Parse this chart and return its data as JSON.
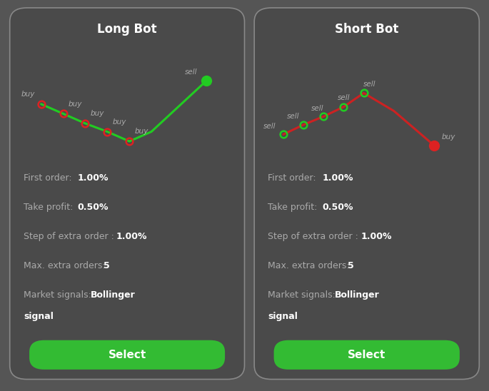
{
  "background_color": "#555555",
  "card_bg_color": "#4a4a4a",
  "card_border_color": "#888888",
  "title_color": "#ffffff",
  "label_color": "#aaaaaa",
  "value_color": "#ffffff",
  "button_color": "#33bb33",
  "button_text_color": "#ffffff",
  "long_title": "Long Bot",
  "short_title": "Short Bot",
  "long_line_color": "#22cc22",
  "short_line_color": "#cc2222",
  "long_buy_marker_color": "#dd2222",
  "long_sell_marker_color": "#22cc22",
  "short_buy_marker_color": "#dd2222",
  "short_sell_marker_color": "#22cc22",
  "info_labels": [
    "First order:",
    "Take profit:",
    "Step of extra order :",
    "Max. extra orders:",
    "Market signals:"
  ],
  "info_values": [
    "1.00%",
    "0.50%",
    "1.00%",
    "5",
    "Bollinger"
  ],
  "info_last_bold": "signal",
  "select_text": "Select",
  "fig_width": 6.85,
  "fig_height": 5.48,
  "dpi": 100
}
